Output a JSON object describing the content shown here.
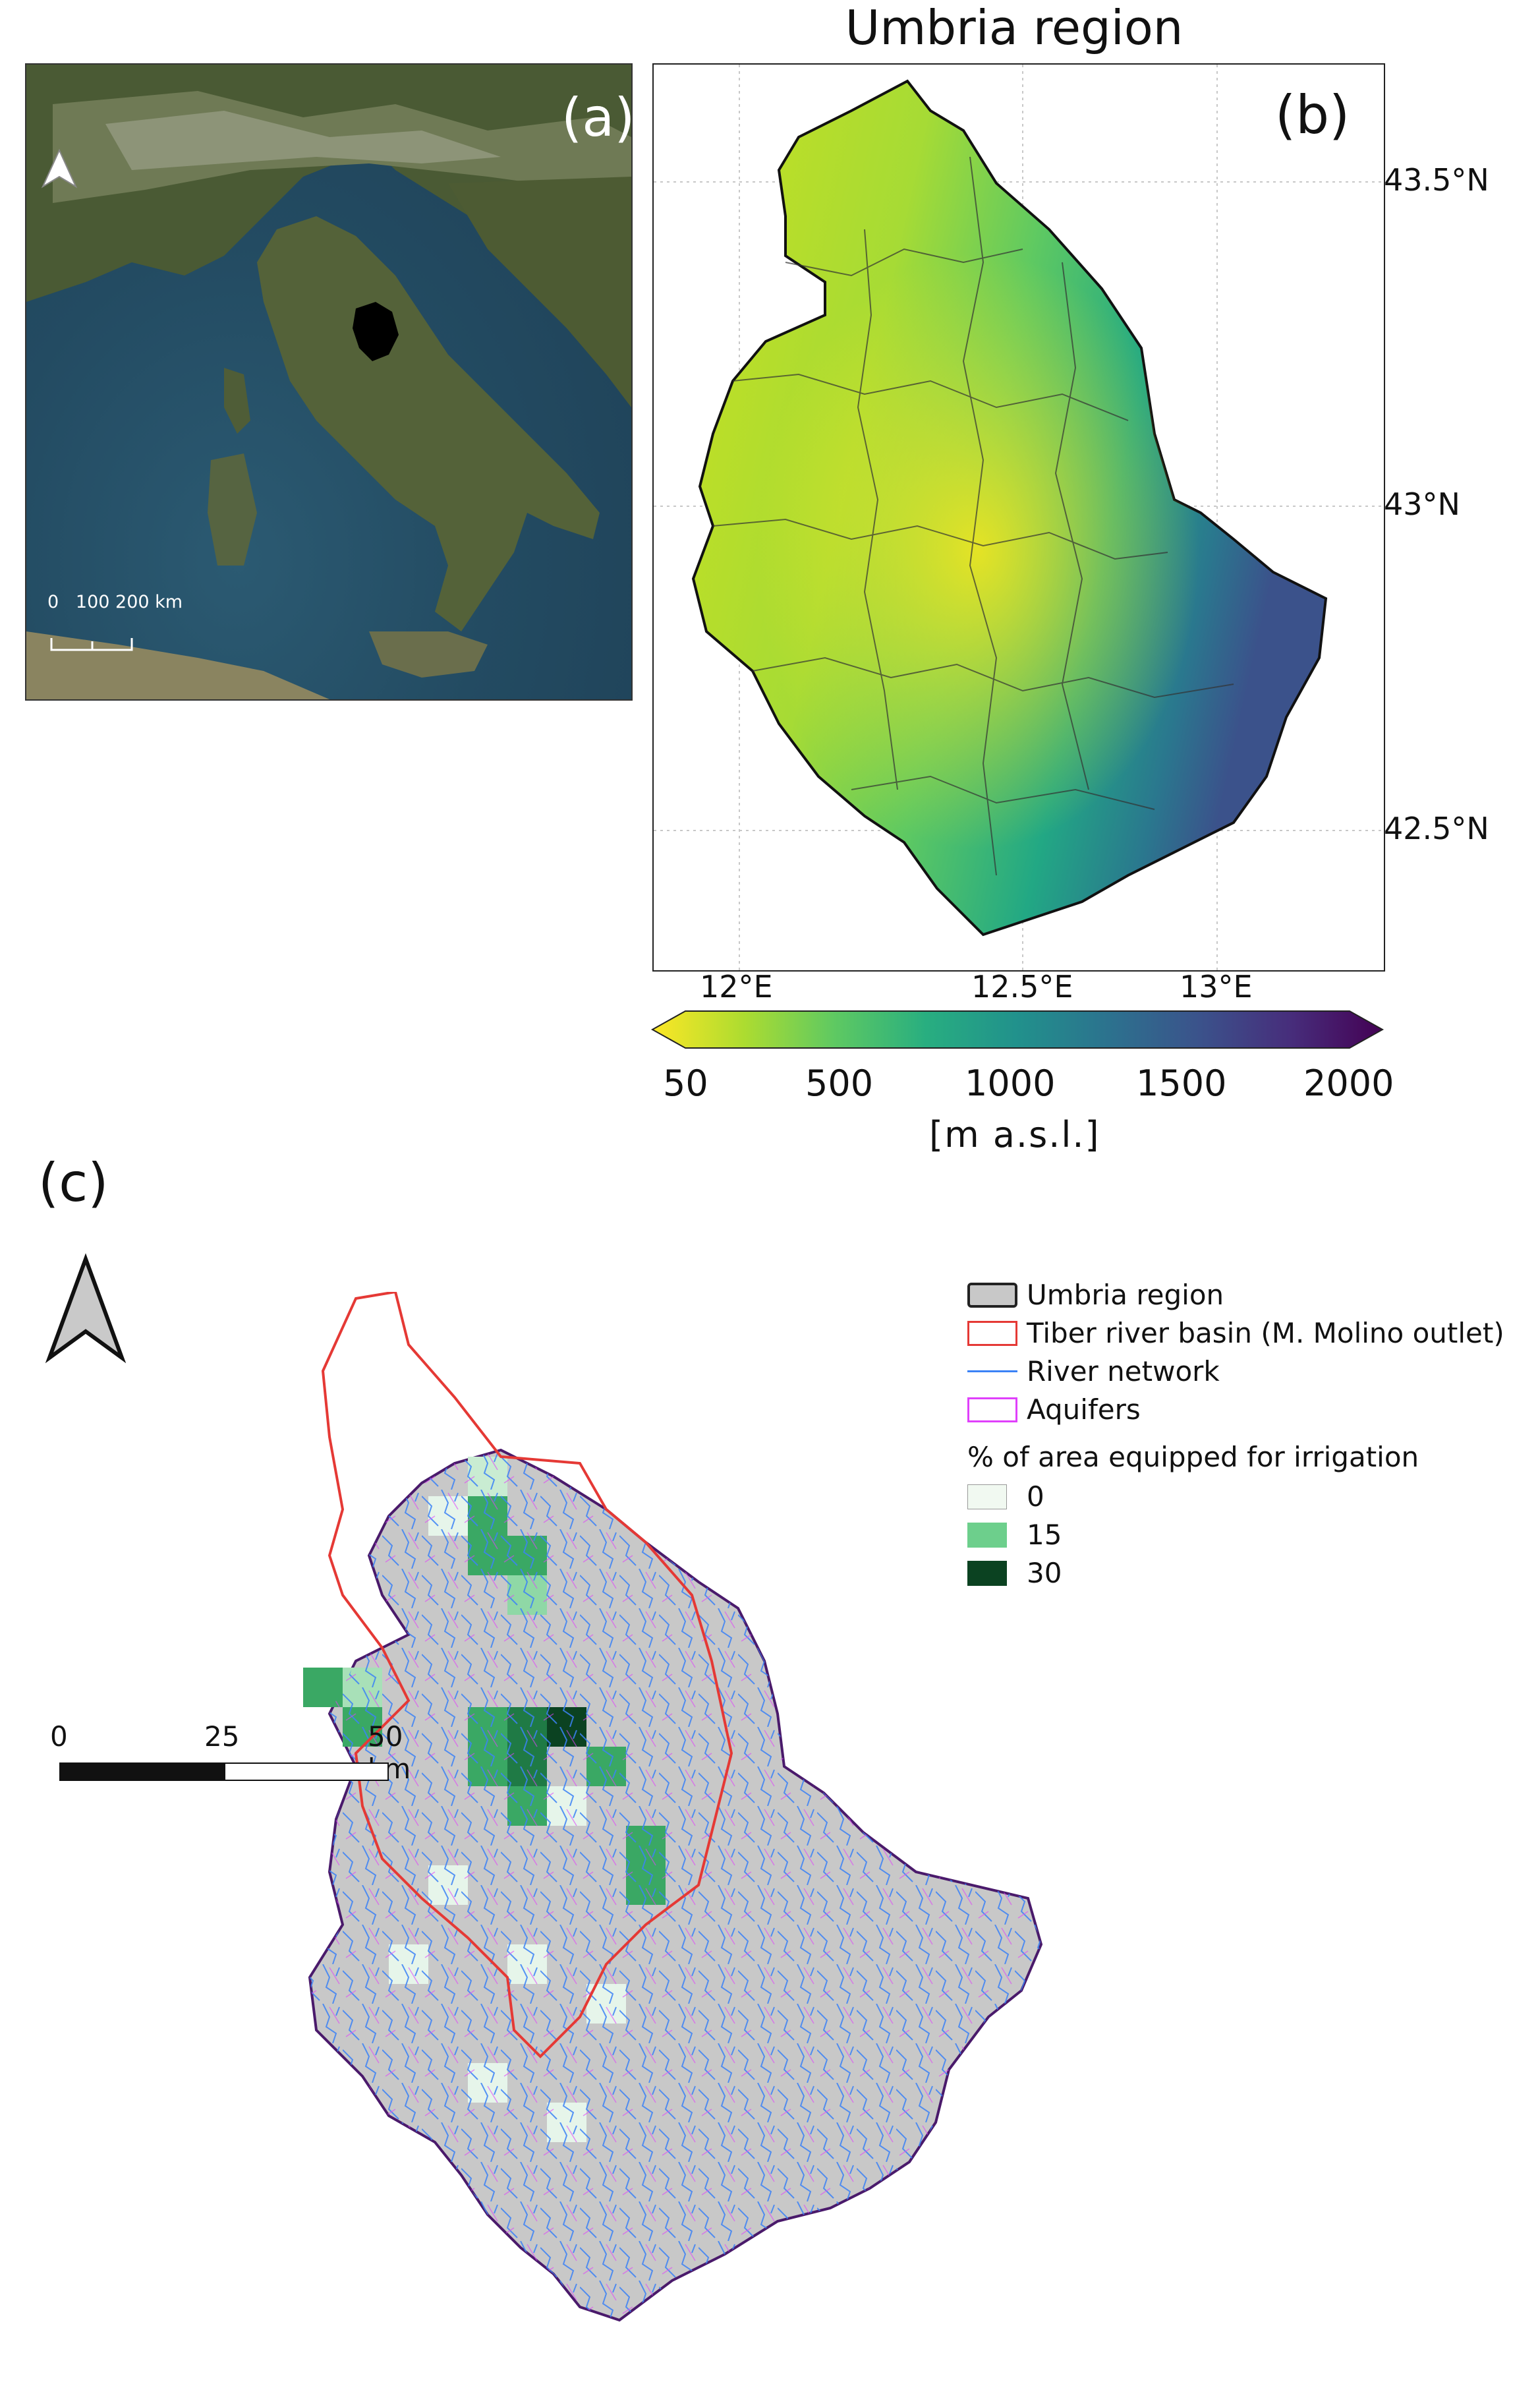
{
  "panel_a": {
    "letter": "(a)",
    "scale_label": "0   100 200 km"
  },
  "panel_b": {
    "title": "Umbria region",
    "letter": "(b)",
    "lat_labels": [
      "43.5°N",
      "43°N",
      "42.5°N"
    ],
    "lon_labels": [
      "12°E",
      "12.5°E",
      "13°E"
    ],
    "colorbar": {
      "ticks": [
        "50",
        "500",
        "1000",
        "1500",
        "2000"
      ],
      "unit": "[m a.s.l.]",
      "colors": [
        "#fde725",
        "#addc30",
        "#5ec962",
        "#28ae80",
        "#21918c",
        "#2c728e",
        "#3b528b",
        "#472d7b",
        "#440154"
      ]
    }
  },
  "panel_c": {
    "letter": "(c)",
    "legend": {
      "region": "Umbria region",
      "basin": "Tiber river basin (M. Molino outlet)",
      "rivers": "River network",
      "aquifers": "Aquifers",
      "irrigation_title": "% of area equipped for irrigation",
      "irrigation_classes": [
        {
          "value": "0",
          "color": "#f1f9f1"
        },
        {
          "value": "15",
          "color": "#6dcf8c"
        },
        {
          "value": "30",
          "color": "#0b4221"
        }
      ]
    },
    "scale_labels": [
      "0",
      "25",
      "50 km"
    ]
  },
  "colors": {
    "region_fill": "#c8c8c8",
    "basin": "#e53935",
    "rivers": "#3b82f6",
    "aquifers": "#e040fb"
  }
}
